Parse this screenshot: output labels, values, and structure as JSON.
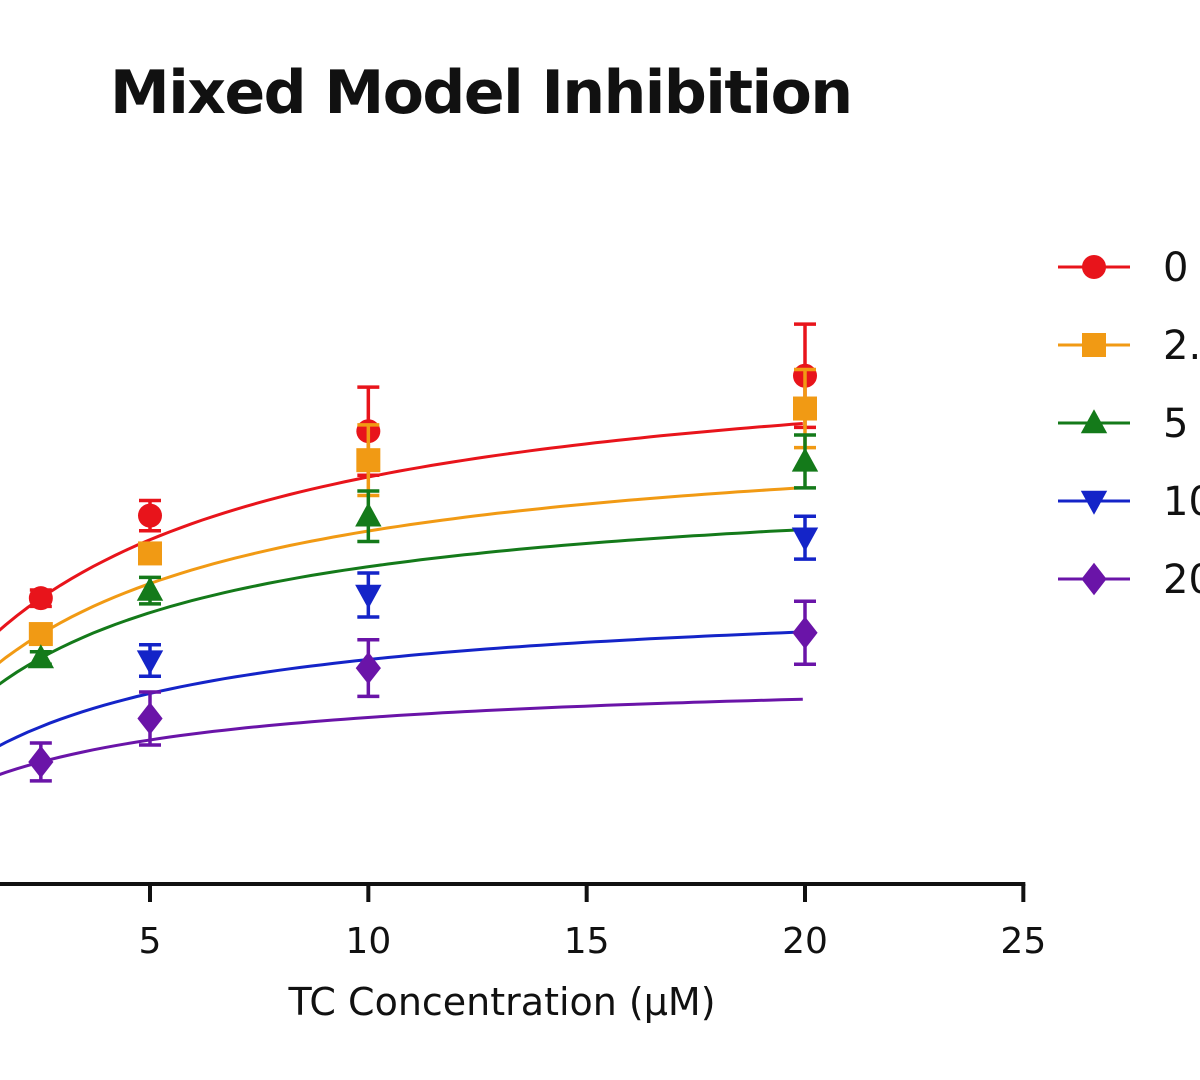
{
  "chart_data": {
    "type": "scatter",
    "title": "Mixed Model Inhibition",
    "xlabel": "TC Concentration (μM)",
    "ylabel": "",
    "x_ticks": [
      5,
      10,
      15,
      20,
      25
    ],
    "xlim": [
      -1.8,
      25
    ],
    "legend_position": "right",
    "series": [
      {
        "name": "0",
        "color": "#e8141b",
        "marker": "circle",
        "points": [
          {
            "x": 2.5,
            "y": 0.95,
            "err": 0.13
          },
          {
            "x": 5,
            "y": 2.26,
            "err": 0.24
          },
          {
            "x": 10,
            "y": 3.6,
            "err": 0.7
          },
          {
            "x": 20,
            "y": 4.48,
            "err": 0.82
          }
        ],
        "fit": {
          "vmax": 5.83,
          "km": 6.2
        }
      },
      {
        "name": "2.",
        "color": "#f19a14",
        "marker": "square",
        "points": [
          {
            "x": 2.5,
            "y": 0.38,
            "err": 0.1
          },
          {
            "x": 5,
            "y": 1.66,
            "err": 0.13
          },
          {
            "x": 10,
            "y": 3.14,
            "err": 0.56
          },
          {
            "x": 20,
            "y": 3.96,
            "err": 0.62
          }
        ],
        "fit": {
          "vmax": 4.92,
          "km": 5.6
        }
      },
      {
        "name": "5",
        "color": "#147a1a",
        "marker": "triangle-up",
        "points": [
          {
            "x": 2.5,
            "y": 0.0,
            "err": 0.1
          },
          {
            "x": 5,
            "y": 1.07,
            "err": 0.21
          },
          {
            "x": 10,
            "y": 2.25,
            "err": 0.4
          },
          {
            "x": 20,
            "y": 3.12,
            "err": 0.42
          }
        ],
        "fit": {
          "vmax": 4.35,
          "km": 5.2
        }
      },
      {
        "name": "10",
        "color": "#1424c8",
        "marker": "triangle-down",
        "points": [
          {
            "x": 2.5,
            "y": null,
            "err": null
          },
          {
            "x": 5,
            "y": -0.04,
            "err": 0.25
          },
          {
            "x": 10,
            "y": 1.0,
            "err": 0.35
          },
          {
            "x": 20,
            "y": 1.91,
            "err": 0.34
          }
        ],
        "fit": {
          "vmax": 3.2,
          "km": 5.3
        }
      },
      {
        "name": "20",
        "color": "#6a14a8",
        "marker": "diamond",
        "points": [
          {
            "x": 2.5,
            "y": -1.65,
            "err": 0.3
          },
          {
            "x": 5,
            "y": -0.96,
            "err": 0.42
          },
          {
            "x": 10,
            "y": -0.16,
            "err": 0.45
          },
          {
            "x": 20,
            "y": 0.4,
            "err": 0.5
          }
        ],
        "fit": {
          "vmax": 2.12,
          "km": 5.3
        }
      }
    ]
  }
}
